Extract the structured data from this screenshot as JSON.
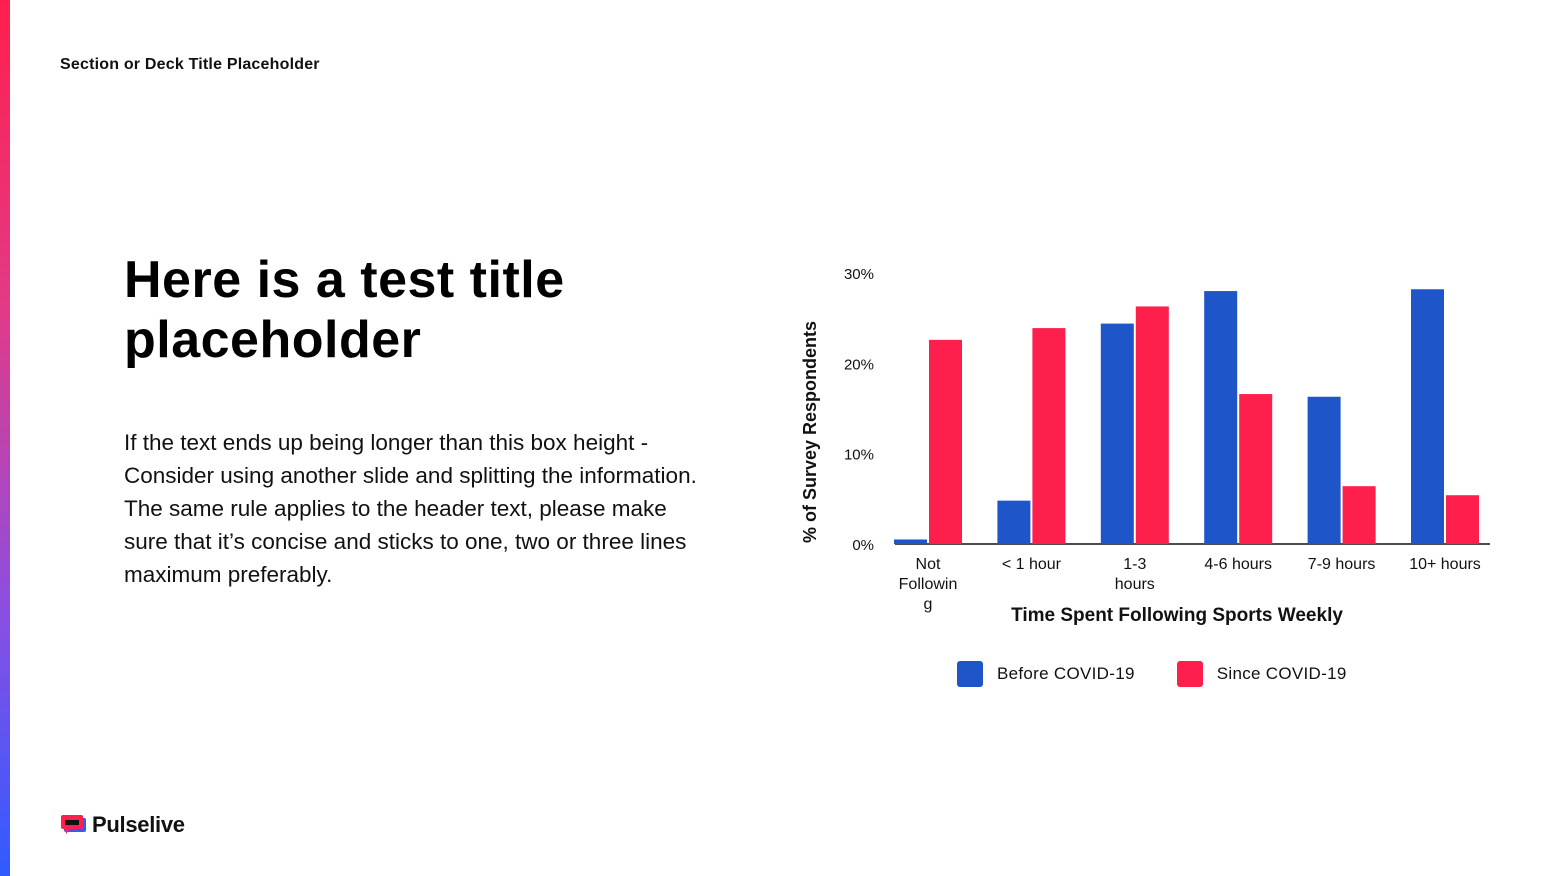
{
  "slide": {
    "section_title": "Section or Deck Title Placeholder",
    "title_line1": "Here is a test title",
    "title_line2": "placeholder",
    "body": "If the text ends up being longer than this box height - Consider using another slide and splitting the information. The same rule applies to the header text, please make sure that it’s concise and sticks to one, two or three lines maximum preferably.",
    "logo_text": "Pulselive"
  },
  "colors": {
    "accent_top": "#ff1f4d",
    "accent_bottom": "#2f5bff",
    "before": "#1e55c8",
    "since": "#ff1f4d"
  },
  "chart_data": {
    "type": "bar",
    "title": "",
    "xlabel": "Time Spent Following Sports Weekly",
    "ylabel": "% of Survey Respondents",
    "categories": [
      [
        "Not",
        "Followin",
        "g"
      ],
      [
        "< 1 hour"
      ],
      [
        "1-3",
        "hours"
      ],
      [
        "4-6 hours"
      ],
      [
        "7-9 hours"
      ],
      [
        "10+ hours"
      ]
    ],
    "series": [
      {
        "name": "Before COVID-19",
        "values": [
          0.5,
          4.8,
          24.4,
          28.0,
          16.3,
          28.2
        ],
        "color": "#1e55c8"
      },
      {
        "name": "Since COVID-19",
        "values": [
          22.6,
          23.9,
          26.3,
          16.6,
          6.4,
          5.4
        ],
        "color": "#ff1f4d"
      }
    ],
    "ylim": [
      0,
      30
    ],
    "yticks": [
      "0%",
      "10%",
      "20%",
      "30%"
    ],
    "grid": false,
    "legend_position": "bottom"
  }
}
